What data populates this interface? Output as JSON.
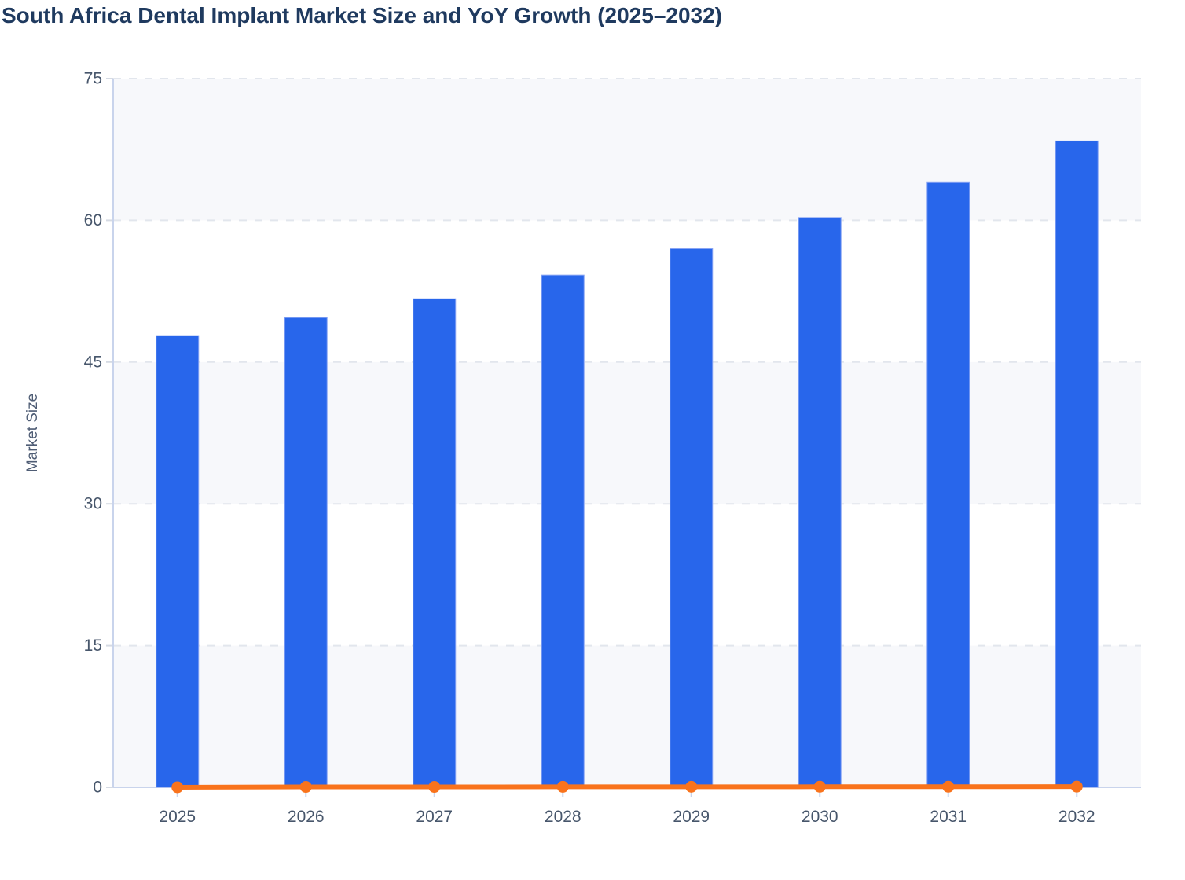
{
  "page": {
    "title": "South Africa Dental Implant Market Size and YoY Growth (2025–2032)"
  },
  "chart_data": {
    "type": "bar",
    "title": "South Africa Dental Implant Market Size and YoY Growth (2025–2032)",
    "categories": [
      "2025",
      "2026",
      "2027",
      "2028",
      "2029",
      "2030",
      "2031",
      "2032"
    ],
    "series": [
      {
        "name": "Market Size",
        "type": "bar",
        "values": [
          47.8,
          49.7,
          51.7,
          54.2,
          57.0,
          60.3,
          64.0,
          68.4
        ]
      },
      {
        "name": "YoY Growth",
        "type": "line",
        "values": [
          0,
          0.04,
          0.04,
          0.048,
          0.052,
          0.058,
          0.061,
          0.069
        ]
      }
    ],
    "xlabel": "",
    "ylabel": "Market Size",
    "ylim": [
      0,
      75
    ],
    "y_ticks": [
      0,
      15,
      30,
      45,
      60,
      75
    ],
    "grid": "horizontal-dashed",
    "band_rows": "alternating light fill between tick pairs 0-15, 30-45, 60-75",
    "legend_position": "none"
  },
  "colors": {
    "title_text": "#1f3a5f",
    "axis_text": "#47566b",
    "ylabel_text": "#4f5d75",
    "bar_fill": "#2866eb",
    "bar_stroke": "#8aa6f4",
    "line_color": "#f9731c",
    "band_fill": "#f7f8fb",
    "gridline": "#e2e6ed",
    "axis_line": "#c9d4ec",
    "tick_mark": "#d5dae3"
  }
}
